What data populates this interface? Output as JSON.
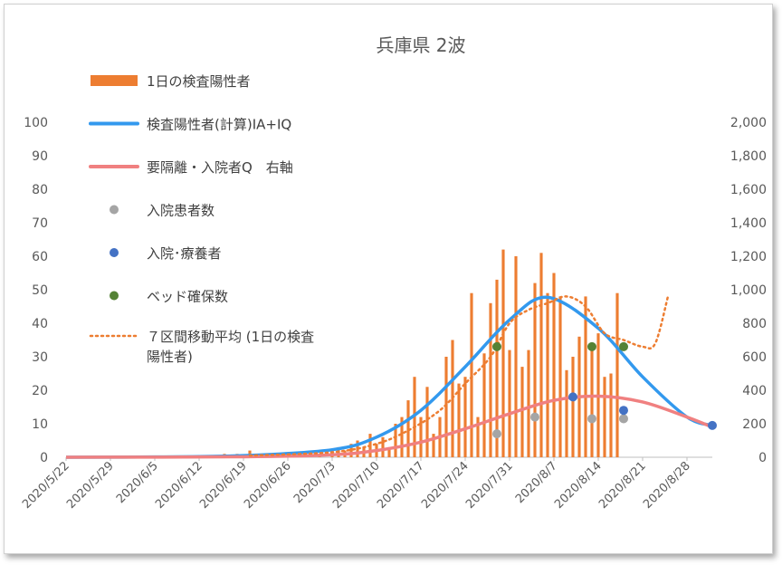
{
  "chart_data": {
    "type": "bar",
    "title": "兵庫県 2波",
    "legend_placement": "top-left",
    "grid": false,
    "ylim_left": [
      0,
      100
    ],
    "ylim_right": [
      0,
      2000
    ],
    "yticks_left": [
      "0",
      "10",
      "20",
      "30",
      "40",
      "50",
      "60",
      "70",
      "80",
      "90",
      "100"
    ],
    "yticks_right": [
      "0",
      "200",
      "400",
      "600",
      "800",
      "1,000",
      "1,200",
      "1,400",
      "1,600",
      "1,800",
      "2,000"
    ],
    "x_tick_labels": [
      "2020/5/22",
      "2020/5/29",
      "2020/6/5",
      "2020/6/12",
      "2020/6/19",
      "2020/6/26",
      "2020/7/3",
      "2020/7/10",
      "2020/7/17",
      "2020/7/24",
      "2020/7/31",
      "2020/8/7",
      "2020/8/14",
      "2020/8/21",
      "2020/8/28"
    ],
    "x_range": [
      "2020/5/22",
      "2020/9/1"
    ],
    "series": [
      {
        "name": "1日の検査陽性者",
        "type": "bar",
        "axis": "left",
        "color": "#ED7D31",
        "x": [
          "2020/6/16",
          "2020/6/18",
          "2020/6/20",
          "2020/6/23",
          "2020/6/26",
          "2020/6/28",
          "2020/7/1",
          "2020/7/3",
          "2020/7/4",
          "2020/7/5",
          "2020/7/6",
          "2020/7/7",
          "2020/7/8",
          "2020/7/9",
          "2020/7/10",
          "2020/7/11",
          "2020/7/12",
          "2020/7/13",
          "2020/7/14",
          "2020/7/15",
          "2020/7/16",
          "2020/7/17",
          "2020/7/18",
          "2020/7/19",
          "2020/7/20",
          "2020/7/21",
          "2020/7/22",
          "2020/7/23",
          "2020/7/24",
          "2020/7/25",
          "2020/7/26",
          "2020/7/27",
          "2020/7/28",
          "2020/7/29",
          "2020/7/30",
          "2020/7/31",
          "2020/8/1",
          "2020/8/2",
          "2020/8/3",
          "2020/8/4",
          "2020/8/5",
          "2020/8/6",
          "2020/8/7",
          "2020/8/8",
          "2020/8/9",
          "2020/8/10",
          "2020/8/11",
          "2020/8/12",
          "2020/8/13",
          "2020/8/14",
          "2020/8/15",
          "2020/8/16",
          "2020/8/17",
          "2020/8/18",
          "2020/8/19"
        ],
        "values": [
          1,
          1,
          2,
          1,
          1,
          1,
          1,
          2,
          3,
          2,
          4,
          5,
          3,
          7,
          4,
          6,
          3,
          10,
          12,
          17,
          24,
          12,
          21,
          7,
          12,
          30,
          35,
          22,
          24,
          49,
          12,
          31,
          46,
          53,
          62,
          32,
          60,
          27,
          32,
          52,
          61,
          49,
          55,
          48,
          26,
          30,
          36,
          48,
          34,
          37,
          24,
          25,
          49,
          0,
          0
        ]
      },
      {
        "name": "検査陽性者(計算)IA+IQ",
        "type": "line",
        "axis": "right",
        "color": "#3399EE",
        "smooth": true,
        "peak_date": "2020/8/6",
        "peak_value": 955,
        "sigma_days_before": 12.5,
        "sigma_days_after": 11.5,
        "x": [
          "2020/5/22",
          "2020/6/5",
          "2020/6/19",
          "2020/7/3",
          "2020/7/10",
          "2020/7/17",
          "2020/7/24",
          "2020/7/31",
          "2020/8/6",
          "2020/8/14",
          "2020/8/21",
          "2020/8/28",
          "2020/9/1"
        ],
        "values": [
          0,
          2,
          10,
          45,
          120,
          280,
          540,
          820,
          955,
          770,
          480,
          240,
          190
        ]
      },
      {
        "name": "要隔離・入院者Q　右軸",
        "type": "line",
        "axis": "right",
        "color": "#F08080",
        "smooth": true,
        "x": [
          "2020/5/22",
          "2020/6/19",
          "2020/7/3",
          "2020/7/10",
          "2020/7/17",
          "2020/7/24",
          "2020/7/31",
          "2020/8/7",
          "2020/8/14",
          "2020/8/21",
          "2020/8/28",
          "2020/9/1"
        ],
        "values": [
          0,
          3,
          15,
          40,
          90,
          170,
          260,
          340,
          365,
          330,
          240,
          180
        ]
      },
      {
        "name": "入院患者数",
        "type": "scatter",
        "axis": "left",
        "color": "#A5A5A5",
        "x": [
          "2020/7/29",
          "2020/8/4",
          "2020/8/13",
          "2020/8/18"
        ],
        "values": [
          7,
          12,
          11.5,
          11.5
        ]
      },
      {
        "name": "入院･療養者",
        "type": "scatter",
        "axis": "left",
        "color": "#4472C4",
        "x": [
          "2020/8/10",
          "2020/8/18",
          "2020/9/1"
        ],
        "values": [
          18,
          14,
          9.5
        ]
      },
      {
        "name": "ベッド確保数",
        "type": "scatter",
        "axis": "left",
        "color": "#548235",
        "x": [
          "2020/7/29",
          "2020/8/13",
          "2020/8/18"
        ],
        "values": [
          33,
          33,
          33
        ]
      },
      {
        "name": "７区間移動平均 (1日の検査陽性者)",
        "type": "line",
        "axis": "left",
        "color": "#ED7D31",
        "dashed": true,
        "x": [
          "2020/6/20",
          "2020/7/3",
          "2020/7/10",
          "2020/7/15",
          "2020/7/20",
          "2020/7/24",
          "2020/7/28",
          "2020/7/31",
          "2020/8/3",
          "2020/8/6",
          "2020/8/9",
          "2020/8/12",
          "2020/8/15",
          "2020/8/18",
          "2020/8/21",
          "2020/8/23",
          "2020/8/25"
        ],
        "values": [
          0.5,
          1.5,
          4,
          8,
          14,
          22,
          30,
          40,
          44,
          46,
          48,
          45,
          37,
          35,
          33,
          34,
          48
        ]
      }
    ],
    "legend": [
      "1日の検査陽性者",
      "検査陽性者(計算)IA+IQ",
      "要隔離・入院者Q　右軸",
      "入院患者数",
      "入院･療養者",
      "ベッド確保数",
      "７区間移動平均 (1日の検査",
      "陽性者)"
    ]
  }
}
